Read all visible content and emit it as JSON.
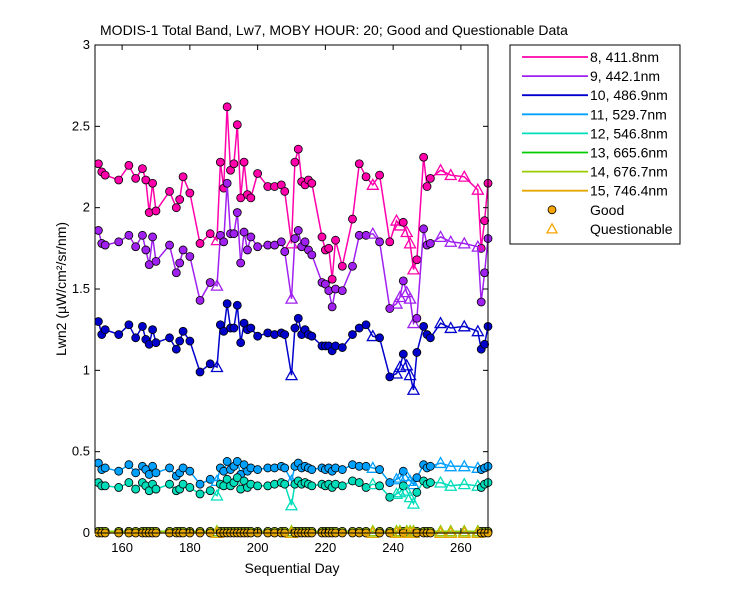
{
  "chart_data": {
    "type": "scatter",
    "title": "MODIS-1 Total Band, Lw7, MOBY HOUR: 20;  Good and Questionable Data",
    "xlabel": "Sequential Day",
    "ylabel": "Lwn2 (µW/cm²/sr/nm)",
    "xlim": [
      152,
      268
    ],
    "ylim": [
      0,
      3
    ],
    "xticks": [
      160,
      180,
      200,
      220,
      240,
      260
    ],
    "yticks": [
      0,
      0.5,
      1,
      1.5,
      2,
      2.5,
      3
    ],
    "grid": false,
    "legend_position": "outside-right",
    "legend_markers": {
      "good": "Good",
      "questionable": "Questionable"
    },
    "marker_colors": {
      "good_edge": "#000000",
      "questionable_fill": "none",
      "legend_good": "#f5a300",
      "legend_questionable": "#f5a300"
    },
    "x": [
      153,
      154,
      155,
      159,
      162,
      164,
      166,
      167,
      168,
      169,
      170,
      174,
      176,
      177,
      178,
      180,
      183,
      186,
      188,
      189,
      190,
      191,
      192,
      193,
      194,
      195,
      196,
      197,
      198,
      200,
      203,
      205,
      207,
      208,
      210,
      211,
      212,
      213,
      214,
      215,
      216,
      219,
      220,
      221,
      222,
      223,
      225,
      228,
      230,
      232,
      234,
      236,
      239,
      241,
      242,
      243,
      244,
      245,
      246,
      247,
      249,
      250,
      251,
      254,
      257,
      261,
      265,
      266,
      267,
      268
    ],
    "questionable": [
      false,
      false,
      false,
      false,
      false,
      false,
      false,
      false,
      false,
      false,
      false,
      false,
      false,
      false,
      false,
      false,
      false,
      false,
      true,
      false,
      false,
      false,
      false,
      false,
      false,
      false,
      false,
      false,
      false,
      false,
      false,
      false,
      false,
      false,
      true,
      false,
      false,
      false,
      false,
      false,
      false,
      false,
      false,
      false,
      false,
      false,
      false,
      false,
      false,
      false,
      true,
      false,
      false,
      true,
      true,
      false,
      true,
      true,
      true,
      false,
      false,
      false,
      false,
      true,
      true,
      true,
      true,
      false,
      false,
      false
    ],
    "series": [
      {
        "name": "8, 411.8nm",
        "color": "#ff00aa",
        "values": [
          2.27,
          2.22,
          2.2,
          2.17,
          2.26,
          2.18,
          2.24,
          2.17,
          1.97,
          2.15,
          1.98,
          2.1,
          2.0,
          2.05,
          2.19,
          2.09,
          1.78,
          1.84,
          1.8,
          2.28,
          2.12,
          2.62,
          2.23,
          2.27,
          2.51,
          2.06,
          2.28,
          2.08,
          2.06,
          2.21,
          2.13,
          2.13,
          2.14,
          2.1,
          1.78,
          2.28,
          2.36,
          2.16,
          2.14,
          2.17,
          2.15,
          1.82,
          1.74,
          1.75,
          1.56,
          1.8,
          1.64,
          1.93,
          2.27,
          2.19,
          2.14,
          2.2,
          1.79,
          1.92,
          1.89,
          1.91,
          1.85,
          1.78,
          1.62,
          1.68,
          2.31,
          2.13,
          2.18,
          2.23,
          2.2,
          2.19,
          2.11,
          1.75,
          1.92,
          2.15
        ]
      },
      {
        "name": "9, 442.1nm",
        "color": "#a020f0",
        "values": [
          1.86,
          1.78,
          1.77,
          1.79,
          1.83,
          1.76,
          1.83,
          1.74,
          1.65,
          1.82,
          1.67,
          1.77,
          1.6,
          1.66,
          1.74,
          1.7,
          1.43,
          1.54,
          1.52,
          1.83,
          1.79,
          2.15,
          1.84,
          1.84,
          1.97,
          1.66,
          1.85,
          1.74,
          1.82,
          1.76,
          1.77,
          1.77,
          1.79,
          1.73,
          1.44,
          1.81,
          1.86,
          1.76,
          1.79,
          1.74,
          1.71,
          1.54,
          1.53,
          1.49,
          1.39,
          1.5,
          1.49,
          1.64,
          1.83,
          1.83,
          1.84,
          1.79,
          1.38,
          1.41,
          1.45,
          1.55,
          1.48,
          1.44,
          1.29,
          1.32,
          1.87,
          1.77,
          1.78,
          1.82,
          1.79,
          1.78,
          1.76,
          1.42,
          1.6,
          1.81
        ]
      },
      {
        "name": "10, 486.9nm",
        "color": "#0000cc",
        "values": [
          1.3,
          1.22,
          1.25,
          1.22,
          1.28,
          1.2,
          1.27,
          1.19,
          1.16,
          1.25,
          1.17,
          1.2,
          1.13,
          1.18,
          1.24,
          1.18,
          0.99,
          1.04,
          1.02,
          1.28,
          1.24,
          1.41,
          1.26,
          1.26,
          1.4,
          1.17,
          1.29,
          1.25,
          1.26,
          1.21,
          1.23,
          1.22,
          1.23,
          1.22,
          0.97,
          1.26,
          1.32,
          1.22,
          1.25,
          1.22,
          1.21,
          1.15,
          1.15,
          1.15,
          1.12,
          1.15,
          1.14,
          1.22,
          1.26,
          1.28,
          1.21,
          1.2,
          0.96,
          0.98,
          1.02,
          1.1,
          1.03,
          0.97,
          0.88,
          1.11,
          1.27,
          1.22,
          1.2,
          1.29,
          1.26,
          1.27,
          1.24,
          1.13,
          1.16,
          1.27
        ]
      },
      {
        "name": "11, 529.7nm",
        "color": "#00a0ff",
        "values": [
          0.43,
          0.39,
          0.4,
          0.38,
          0.42,
          0.37,
          0.41,
          0.39,
          0.36,
          0.41,
          0.37,
          0.4,
          0.35,
          0.37,
          0.4,
          0.38,
          0.3,
          0.33,
          0.32,
          0.4,
          0.38,
          0.44,
          0.39,
          0.41,
          0.44,
          0.36,
          0.42,
          0.38,
          0.4,
          0.39,
          0.4,
          0.4,
          0.41,
          0.4,
          0.32,
          0.41,
          0.43,
          0.4,
          0.41,
          0.4,
          0.39,
          0.4,
          0.39,
          0.4,
          0.38,
          0.4,
          0.39,
          0.42,
          0.41,
          0.41,
          0.4,
          0.39,
          0.31,
          0.33,
          0.34,
          0.38,
          0.35,
          0.32,
          0.3,
          0.34,
          0.42,
          0.4,
          0.41,
          0.43,
          0.41,
          0.41,
          0.4,
          0.39,
          0.4,
          0.41
        ]
      },
      {
        "name": "12, 546.8nm",
        "color": "#00ddbb",
        "values": [
          0.31,
          0.29,
          0.29,
          0.28,
          0.31,
          0.27,
          0.31,
          0.29,
          0.26,
          0.3,
          0.27,
          0.3,
          0.26,
          0.27,
          0.3,
          0.28,
          0.24,
          0.26,
          0.23,
          0.3,
          0.29,
          0.33,
          0.29,
          0.31,
          0.34,
          0.27,
          0.32,
          0.28,
          0.3,
          0.29,
          0.29,
          0.3,
          0.31,
          0.3,
          0.17,
          0.3,
          0.32,
          0.3,
          0.31,
          0.3,
          0.29,
          0.3,
          0.29,
          0.3,
          0.28,
          0.3,
          0.29,
          0.32,
          0.31,
          0.28,
          0.3,
          0.29,
          0.22,
          0.24,
          0.25,
          0.29,
          0.26,
          0.22,
          0.18,
          0.25,
          0.32,
          0.3,
          0.31,
          0.31,
          0.29,
          0.3,
          0.29,
          0.28,
          0.3,
          0.31
        ]
      },
      {
        "name": "13, 665.6nm",
        "color": "#00cc00",
        "values": [
          0.01,
          0.01,
          0.01,
          0.01,
          0.01,
          0.01,
          0.01,
          0.01,
          0.01,
          0.01,
          0.01,
          0.01,
          0.01,
          0.01,
          0.01,
          0.01,
          0.01,
          0.01,
          0.01,
          0.01,
          0.01,
          0.01,
          0.01,
          0.01,
          0.01,
          0.01,
          0.01,
          0.01,
          0.01,
          0.01,
          0.01,
          0.01,
          0.01,
          0.01,
          0.01,
          0.01,
          0.01,
          0.01,
          0.01,
          0.01,
          0.01,
          0.01,
          0.01,
          0.01,
          0.01,
          0.01,
          0.01,
          0.01,
          0.01,
          0.01,
          0.01,
          0.01,
          0.01,
          0.01,
          0.01,
          0.01,
          0.01,
          0.01,
          0.01,
          0.01,
          0.01,
          0.01,
          0.01,
          0.01,
          0.01,
          0.01,
          0.01,
          0.01,
          0.01,
          0.01
        ]
      },
      {
        "name": "14, 676.7nm",
        "color": "#99cc00",
        "values": [
          0.01,
          0.01,
          0.01,
          0.01,
          0.01,
          0.01,
          0.01,
          0.01,
          0.01,
          0.01,
          0.01,
          0.01,
          0.01,
          0.01,
          0.01,
          0.01,
          0.01,
          0.01,
          0.01,
          0.01,
          0.01,
          0.01,
          0.01,
          0.01,
          0.01,
          0.01,
          0.01,
          0.01,
          0.01,
          0.01,
          0.01,
          0.01,
          0.01,
          0.01,
          0.01,
          0.01,
          0.01,
          0.01,
          0.01,
          0.01,
          0.01,
          0.01,
          0.01,
          0.01,
          0.01,
          0.01,
          0.01,
          0.01,
          0.01,
          0.01,
          0.01,
          0.01,
          0.01,
          0.01,
          0.01,
          0.01,
          0.01,
          0.01,
          0.01,
          0.01,
          0.01,
          0.01,
          0.01,
          0.01,
          0.01,
          0.01,
          0.01,
          0.01,
          0.01,
          0.01
        ]
      },
      {
        "name": "15, 746.4nm",
        "color": "#e6a800",
        "values": [
          0.0,
          0.0,
          0.0,
          0.0,
          0.0,
          0.0,
          0.0,
          0.0,
          0.0,
          0.0,
          0.0,
          0.0,
          0.0,
          0.0,
          0.0,
          0.0,
          0.0,
          0.0,
          0.0,
          0.0,
          0.0,
          0.0,
          0.0,
          0.0,
          0.0,
          0.0,
          0.0,
          0.0,
          0.0,
          0.0,
          0.0,
          0.0,
          0.0,
          0.0,
          0.0,
          0.0,
          0.0,
          0.0,
          0.0,
          0.0,
          0.0,
          0.0,
          0.0,
          0.0,
          0.0,
          0.0,
          0.0,
          0.0,
          0.0,
          0.0,
          0.0,
          0.0,
          0.0,
          0.0,
          0.0,
          0.0,
          0.0,
          0.0,
          0.0,
          0.0,
          0.0,
          0.0,
          0.0,
          0.0,
          0.0,
          0.0,
          0.0,
          0.0,
          0.0,
          0.0
        ]
      }
    ]
  }
}
